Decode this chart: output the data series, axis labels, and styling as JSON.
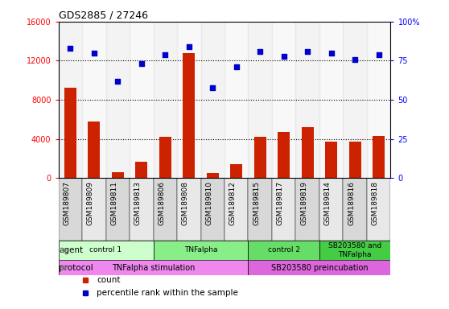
{
  "title": "GDS2885 / 27246",
  "samples": [
    "GSM189807",
    "GSM189809",
    "GSM189811",
    "GSM189813",
    "GSM189806",
    "GSM189808",
    "GSM189810",
    "GSM189812",
    "GSM189815",
    "GSM189817",
    "GSM189819",
    "GSM189814",
    "GSM189816",
    "GSM189818"
  ],
  "counts": [
    9200,
    5800,
    600,
    1700,
    4200,
    12800,
    500,
    1400,
    4200,
    4700,
    5200,
    3700,
    3700,
    4300
  ],
  "percentiles": [
    83,
    80,
    62,
    73,
    79,
    84,
    58,
    71,
    81,
    78,
    81,
    80,
    76,
    79
  ],
  "bar_color": "#cc2200",
  "dot_color": "#0000cc",
  "ylim_left": [
    0,
    16000
  ],
  "ylim_right": [
    0,
    100
  ],
  "yticks_left": [
    0,
    4000,
    8000,
    12000,
    16000
  ],
  "yticks_right": [
    0,
    25,
    50,
    75,
    100
  ],
  "agent_groups": [
    {
      "label": "control 1",
      "start": 0,
      "end": 4,
      "color": "#ccffcc"
    },
    {
      "label": "TNFalpha",
      "start": 4,
      "end": 8,
      "color": "#88ee88"
    },
    {
      "label": "control 2",
      "start": 8,
      "end": 11,
      "color": "#66dd66"
    },
    {
      "label": "SB203580 and\nTNFalpha",
      "start": 11,
      "end": 14,
      "color": "#44cc44"
    }
  ],
  "protocol_groups": [
    {
      "label": "TNFalpha stimulation",
      "start": 0,
      "end": 8,
      "color": "#ee88ee"
    },
    {
      "label": "SB203580 preincubation",
      "start": 8,
      "end": 14,
      "color": "#dd66dd"
    }
  ],
  "agent_label": "agent",
  "protocol_label": "protocol",
  "legend_items": [
    {
      "color": "#cc2200",
      "marker": "s",
      "label": "count"
    },
    {
      "color": "#0000cc",
      "marker": "s",
      "label": "percentile rank within the sample"
    }
  ]
}
